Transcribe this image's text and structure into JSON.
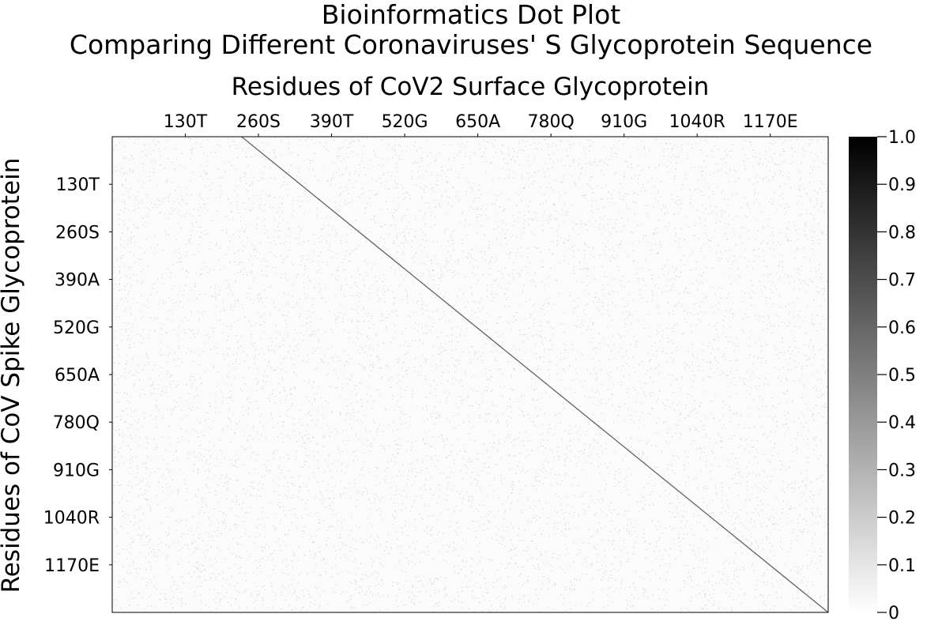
{
  "chart_data": {
    "type": "heatmap",
    "title": "Bioinformatics Dot Plot",
    "subtitle": "Comparing Different Coronaviruses' S Glycoprotein Sequence",
    "xlabel": "Residues of CoV2 Surface Glycoprotein",
    "ylabel": "Residues of CoV Spike Glycoprotein",
    "x_ticks": [
      {
        "position": 130,
        "label": "130T"
      },
      {
        "position": 260,
        "label": "260S"
      },
      {
        "position": 390,
        "label": "390T"
      },
      {
        "position": 520,
        "label": "520G"
      },
      {
        "position": 650,
        "label": "650A"
      },
      {
        "position": 780,
        "label": "780Q"
      },
      {
        "position": 910,
        "label": "910G"
      },
      {
        "position": 1040,
        "label": "1040R"
      },
      {
        "position": 1170,
        "label": "1170E"
      }
    ],
    "y_ticks": [
      {
        "position": 130,
        "label": "130T"
      },
      {
        "position": 260,
        "label": "260S"
      },
      {
        "position": 390,
        "label": "390A"
      },
      {
        "position": 520,
        "label": "520G"
      },
      {
        "position": 650,
        "label": "650A"
      },
      {
        "position": 780,
        "label": "780Q"
      },
      {
        "position": 910,
        "label": "910G"
      },
      {
        "position": 1040,
        "label": "1040R"
      },
      {
        "position": 1170,
        "label": "1170E"
      }
    ],
    "xlim": [
      0,
      1273
    ],
    "ylim": [
      0,
      1300
    ],
    "x_axis_position": "top",
    "y_axis_inverted": true,
    "colorbar": {
      "range": [
        0,
        1
      ],
      "ticks": [
        "0",
        "0.1",
        "0.2",
        "0.3",
        "0.4",
        "0.5",
        "0.6",
        "0.7",
        "0.8",
        "0.9",
        "1.0"
      ],
      "colormap": [
        "#ffffff",
        "#000000"
      ]
    },
    "diagonal_match": {
      "from": [
        230,
        0
      ],
      "to": [
        1273,
        1300
      ],
      "intensity": 0.6
    },
    "background_match_intensity": 0.15,
    "grid": false,
    "legend": "colorbar-right"
  }
}
